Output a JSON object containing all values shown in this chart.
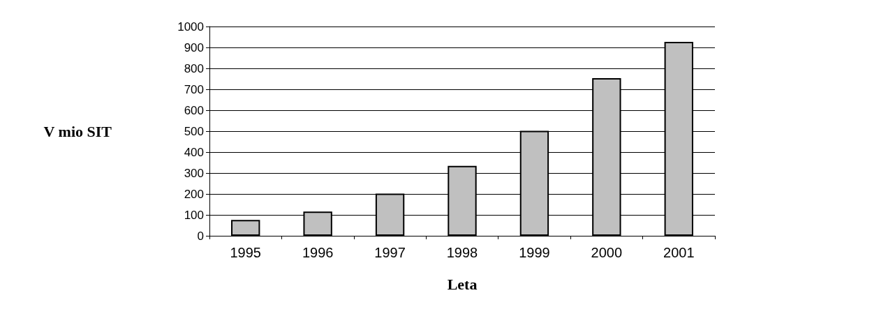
{
  "chart_data": {
    "type": "bar",
    "xlabel": "Leta",
    "ylabel": "V mio SIT",
    "categories": [
      "1995",
      "1996",
      "1997",
      "1998",
      "1999",
      "2000",
      "2001"
    ],
    "values": [
      76,
      116,
      202,
      334,
      502,
      753,
      927
    ],
    "color": "#c0c0c0",
    "ylim": [
      0,
      1000
    ],
    "yticks": [
      0,
      100,
      200,
      300,
      400,
      500,
      600,
      700,
      800,
      900,
      1000
    ],
    "grid": "y"
  }
}
